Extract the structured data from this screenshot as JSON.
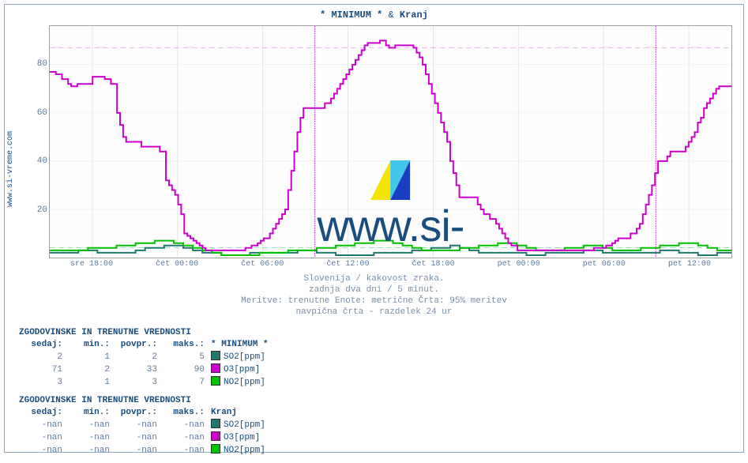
{
  "title_prefix": "* MINIMUM * ",
  "title_sep": "& ",
  "title_station": "Kranj",
  "ylabel": "www.si-vreme.com",
  "watermark_text": "www.si-vreme.com",
  "chart": {
    "type": "line",
    "ylim": [
      0,
      96
    ],
    "yticks": [
      20,
      40,
      60,
      80
    ],
    "xticks": [
      "sre 18:00",
      "čet 00:00",
      "čet 06:00",
      "čet 12:00",
      "čet 18:00",
      "pet 00:00",
      "pet 06:00",
      "pet 12:00"
    ],
    "n_points": 576,
    "vline_dashed_positions": [
      0.389,
      0.889
    ],
    "hline_dashed_y": 87,
    "hline_dashed_colors": [
      "#cc00cc",
      "#00aa55"
    ],
    "hline_dashed_y2": 4,
    "grid_color": "#e2e2e2",
    "bg_color": "#fdfdfd",
    "series": {
      "so2": {
        "color": "#1e786e",
        "values": [
          2,
          2,
          2,
          2,
          2,
          2,
          3,
          3,
          3,
          3,
          2,
          2,
          2,
          2,
          2,
          2,
          2,
          2,
          3,
          3,
          4,
          4,
          4,
          4,
          5,
          5,
          5,
          5,
          4,
          4,
          3,
          3,
          2,
          2,
          2,
          2,
          1,
          1,
          1,
          1,
          1,
          1,
          2,
          2,
          2,
          2,
          2,
          2,
          2,
          2,
          2,
          2,
          3,
          3,
          3,
          3,
          2,
          2,
          2,
          2,
          1,
          1,
          1,
          1,
          1,
          1,
          1,
          1,
          2,
          2,
          2,
          2,
          2,
          2,
          2,
          2,
          3,
          3,
          3,
          3,
          4,
          4,
          4,
          4,
          5,
          5,
          4,
          4,
          3,
          3,
          2,
          2,
          2,
          2,
          2,
          2,
          2,
          2,
          2,
          2,
          1,
          1,
          1,
          1,
          2,
          2,
          2,
          2,
          2,
          2,
          2,
          2,
          3,
          3,
          3,
          3,
          2,
          2,
          2,
          2,
          2,
          2,
          2,
          2,
          2,
          2,
          2,
          2,
          3,
          3,
          3,
          3,
          2,
          2,
          2,
          2,
          1,
          1,
          1,
          1,
          2,
          2,
          2,
          2
        ]
      },
      "no2": {
        "color": "#00c000",
        "values": [
          3,
          3,
          3,
          3,
          3,
          3,
          3,
          3,
          4,
          4,
          4,
          4,
          4,
          4,
          5,
          5,
          5,
          5,
          6,
          6,
          6,
          6,
          7,
          7,
          7,
          7,
          6,
          6,
          5,
          5,
          4,
          4,
          3,
          3,
          2,
          2,
          1,
          1,
          1,
          1,
          1,
          1,
          1,
          1,
          2,
          2,
          2,
          2,
          2,
          2,
          3,
          3,
          3,
          3,
          3,
          3,
          4,
          4,
          4,
          4,
          5,
          5,
          5,
          5,
          6,
          6,
          6,
          6,
          7,
          7,
          7,
          7,
          6,
          6,
          5,
          5,
          4,
          4,
          3,
          3,
          3,
          3,
          3,
          3,
          3,
          3,
          4,
          4,
          4,
          4,
          5,
          5,
          5,
          5,
          6,
          6,
          6,
          6,
          5,
          5,
          4,
          4,
          3,
          3,
          3,
          3,
          3,
          3,
          4,
          4,
          4,
          4,
          5,
          5,
          5,
          5,
          4,
          4,
          3,
          3,
          3,
          3,
          3,
          3,
          4,
          4,
          4,
          4,
          5,
          5,
          5,
          5,
          6,
          6,
          6,
          6,
          5,
          5,
          4,
          4,
          3,
          3,
          3,
          3
        ]
      },
      "o3": {
        "color": "#cc00cc",
        "values": [
          77,
          77,
          76,
          76,
          74,
          74,
          72,
          71,
          71,
          72,
          72,
          72,
          72,
          72,
          75,
          75,
          75,
          75,
          74,
          74,
          72,
          72,
          60,
          55,
          50,
          48,
          48,
          48,
          48,
          48,
          46,
          46,
          46,
          46,
          46,
          46,
          44,
          44,
          32,
          30,
          28,
          26,
          22,
          18,
          10,
          9,
          8,
          7,
          6,
          5,
          4,
          3,
          3,
          3,
          3,
          3,
          3,
          3,
          3,
          3,
          3,
          3,
          3,
          3,
          4,
          4,
          5,
          5,
          6,
          7,
          8,
          8,
          10,
          12,
          14,
          16,
          18,
          20,
          28,
          36,
          44,
          52,
          58,
          62,
          62,
          62,
          62,
          62,
          62,
          62,
          64,
          64,
          66,
          68,
          70,
          72,
          74,
          76,
          78,
          80,
          82,
          84,
          86,
          88,
          89,
          89,
          89,
          89,
          90,
          90,
          88,
          87,
          87,
          88,
          88,
          88,
          88,
          88,
          88,
          87,
          85,
          83,
          80,
          76,
          72,
          68,
          64,
          60,
          56,
          52,
          48,
          40,
          35,
          30,
          25,
          25,
          25,
          25,
          25,
          25,
          22,
          20,
          18,
          18,
          16,
          16,
          14,
          12,
          10,
          8,
          6,
          5,
          5,
          3,
          3,
          3,
          3,
          3,
          3,
          3,
          3,
          3,
          3,
          3,
          3,
          3,
          3,
          3,
          3,
          3,
          3,
          3,
          3,
          3,
          3,
          3,
          3,
          3,
          4,
          4,
          4,
          4,
          5,
          5,
          6,
          7,
          8,
          8,
          8,
          8,
          10,
          10,
          12,
          14,
          18,
          22,
          26,
          30,
          35,
          40,
          40,
          40,
          42,
          44,
          44,
          44,
          44,
          44,
          46,
          48,
          50,
          52,
          56,
          58,
          62,
          64,
          66,
          68,
          70,
          71,
          71,
          71,
          71,
          71
        ]
      }
    }
  },
  "subtitle_lines": [
    "Slovenija / kakovost zraka.",
    "zadnja dva dni / 5 minut.",
    "Meritve: trenutne  Enote: metrične  Črta: 95% meritev",
    "navpična črta - razdelek 24 ur"
  ],
  "tables": [
    {
      "title": "ZGODOVINSKE IN TRENUTNE VREDNOSTI",
      "station": "* MINIMUM *",
      "headers": [
        "sedaj:",
        "min.:",
        "povpr.:",
        "maks.:"
      ],
      "rows": [
        {
          "values": [
            "2",
            "1",
            "2",
            "5"
          ],
          "swatch": "#1e786e",
          "label": "SO2[ppm]"
        },
        {
          "values": [
            "71",
            "2",
            "33",
            "90"
          ],
          "swatch": "#cc00cc",
          "label": "O3[ppm]"
        },
        {
          "values": [
            "3",
            "1",
            "3",
            "7"
          ],
          "swatch": "#00c000",
          "label": "NO2[ppm]"
        }
      ]
    },
    {
      "title": "ZGODOVINSKE IN TRENUTNE VREDNOSTI",
      "station": "Kranj",
      "headers": [
        "sedaj:",
        "min.:",
        "povpr.:",
        "maks.:"
      ],
      "rows": [
        {
          "values": [
            "-nan",
            "-nan",
            "-nan",
            "-nan"
          ],
          "swatch": "#1e786e",
          "label": "SO2[ppm]"
        },
        {
          "values": [
            "-nan",
            "-nan",
            "-nan",
            "-nan"
          ],
          "swatch": "#cc00cc",
          "label": "O3[ppm]"
        },
        {
          "values": [
            "-nan",
            "-nan",
            "-nan",
            "-nan"
          ],
          "swatch": "#00c000",
          "label": "NO2[ppm]"
        }
      ]
    }
  ]
}
